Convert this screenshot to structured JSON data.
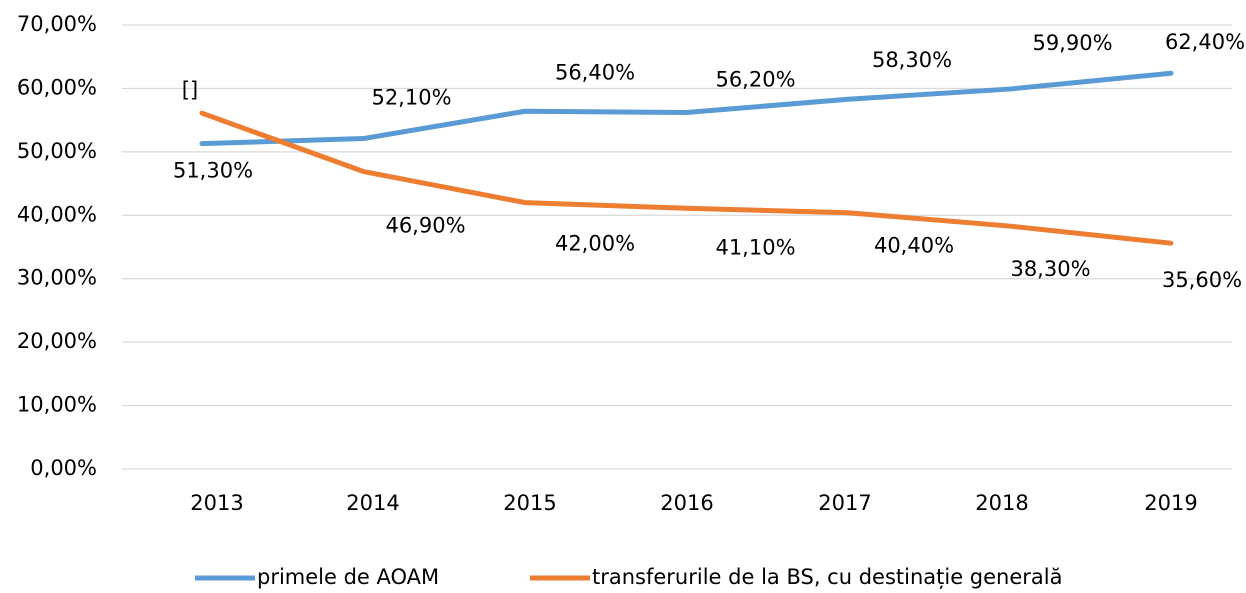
{
  "chart_data": {
    "type": "line",
    "categories": [
      "2013",
      "2014",
      "2015",
      "2016",
      "2017",
      "2018",
      "2019"
    ],
    "series": [
      {
        "name": "primele de AOAM",
        "color": "#5b9bd5",
        "values": [
          51.3,
          52.1,
          56.4,
          56.2,
          58.3,
          59.9,
          62.4
        ],
        "value_labels": [
          "51,30%",
          "52,10%",
          "56,40%",
          "56,20%",
          "58,30%",
          "59,90%",
          "62,40%"
        ]
      },
      {
        "name": "transferurile de la BS, cu destinație generală",
        "color": "#ed7d31",
        "values": [
          56.1,
          46.9,
          42.0,
          41.1,
          40.4,
          38.3,
          35.6
        ],
        "value_labels": [
          "[]",
          "46,90%",
          "42,00%",
          "41,10%",
          "40,40%",
          "38,30%",
          "35,60%"
        ]
      }
    ],
    "ylim": [
      0,
      70
    ],
    "yticks": [
      {
        "value": 0,
        "label": "0,00%"
      },
      {
        "value": 10,
        "label": "10,00%"
      },
      {
        "value": 20,
        "label": "20,00%"
      },
      {
        "value": 30,
        "label": "30,00%"
      },
      {
        "value": 40,
        "label": "40,00%"
      },
      {
        "value": 50,
        "label": "50,00%"
      },
      {
        "value": 60,
        "label": "60,00%"
      },
      {
        "value": 70,
        "label": "70,00%"
      }
    ],
    "grid": true,
    "legend": "bottom"
  }
}
